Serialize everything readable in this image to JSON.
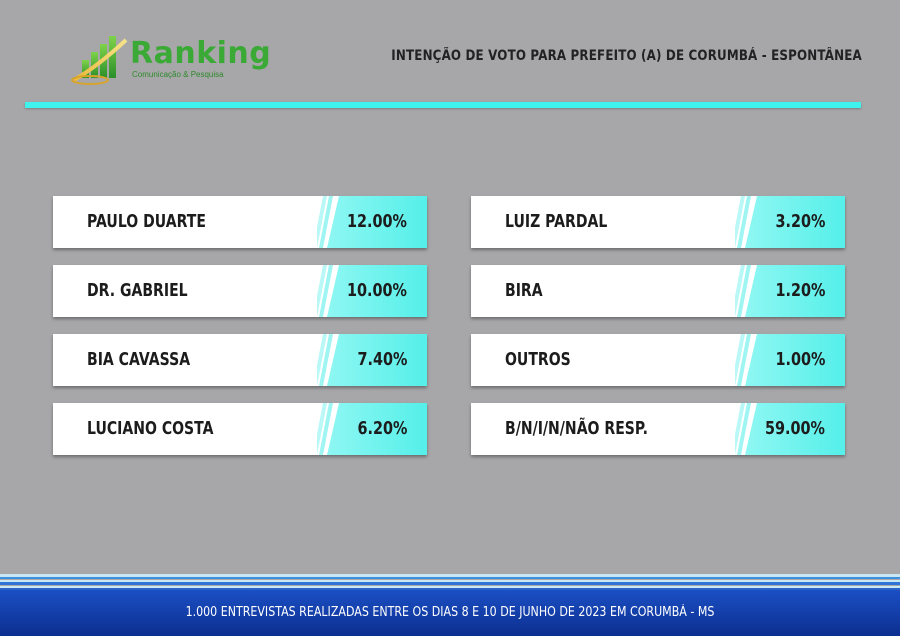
{
  "brand": {
    "name": "Ranking",
    "tagline": "Comunicação & Pesquisa",
    "color": "#3aa935"
  },
  "header": {
    "title": "INTENÇÃO DE VOTO PARA PREFEITO (A) DE CORUMBÁ - ESPONTÂNEA",
    "accent_color": "#3ff2ee"
  },
  "chart_data": {
    "type": "table",
    "title": "INTENÇÃO DE VOTO PARA PREFEITO (A) DE CORUMBÁ - ESPONTÂNEA",
    "categories": [
      "PAULO DUARTE",
      "DR. GABRIEL",
      "BIA CAVASSA",
      "LUCIANO COSTA",
      "LUIZ PARDAL",
      "BIRA",
      "OUTROS",
      "B/N/I/N/NÃO RESP."
    ],
    "values": [
      12.0,
      10.0,
      7.4,
      6.2,
      3.2,
      1.2,
      1.0,
      59.0
    ],
    "labels": [
      "12.00%",
      "10.00%",
      "7.40%",
      "6.20%",
      "3.20%",
      "1.20%",
      "1.00%",
      "59.00%"
    ]
  },
  "footer": {
    "text": "1.000 ENTREVISTAS REALIZADAS ENTRE OS DIAS 8 E 10 DE JUNHO DE 2023 EM CORUMBÁ - MS",
    "color": "#1b4fc4"
  }
}
